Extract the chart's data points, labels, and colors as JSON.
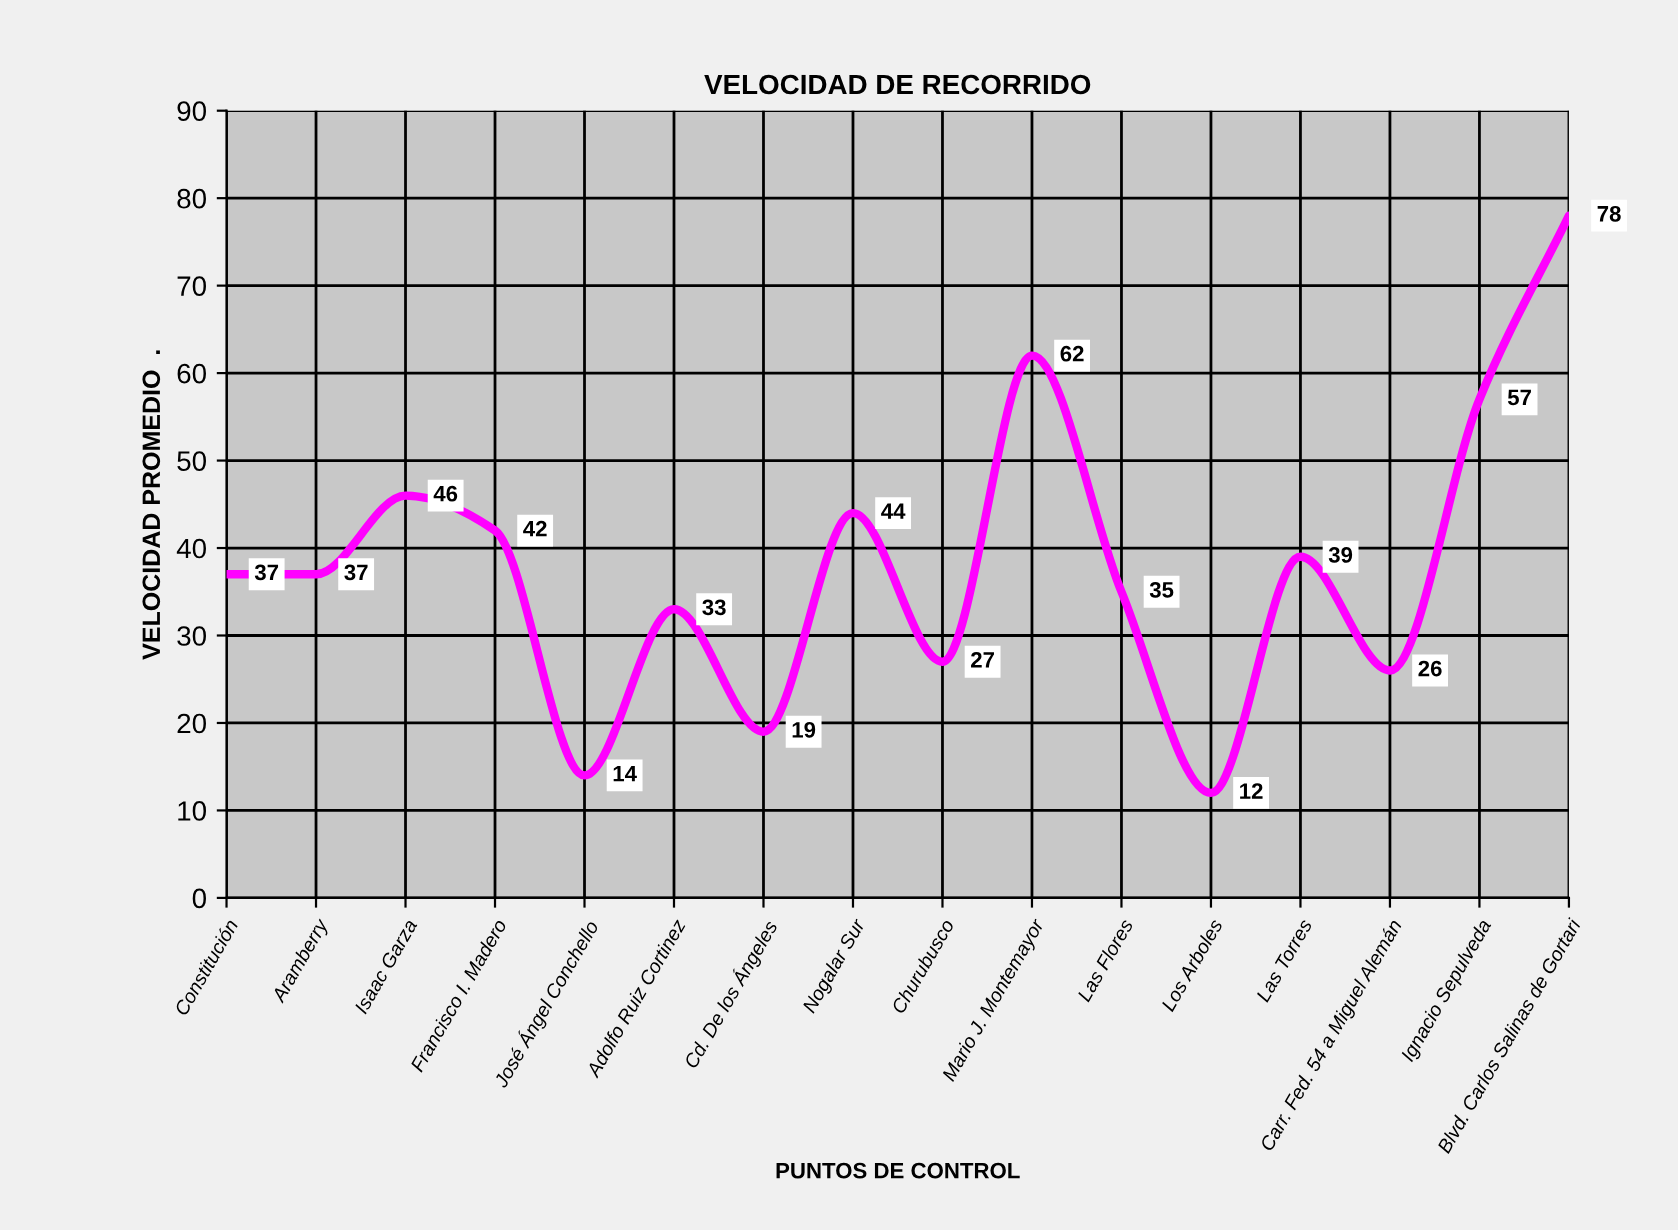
{
  "chart_data": {
    "type": "line",
    "title": "VELOCIDAD DE RECORRIDO",
    "xlabel": "PUNTOS DE CONTROL",
    "ylabel": "VELOCIDAD PROMEDIO  .",
    "categories": [
      "Constitución",
      "Aramberry",
      "Isaac Garza",
      "Francisco I. Madero",
      "José Ángel Conchello",
      "Adolfo Ruiz Cortinez",
      "Cd. De los Ángeles",
      "Nogalar Sur",
      "Churubusco",
      "Mario J. Montemayor",
      "Las Flores",
      "Los Arboles",
      "Las Torres",
      "Carr. Fed. 54 a Miguel Alemán",
      "Ignacio Sepulveda",
      "Blvd. Carlos Salinas de Gortari"
    ],
    "series": [
      {
        "color": "#ff00ff",
        "values": [
          37,
          37,
          46,
          42,
          14,
          33,
          19,
          44,
          27,
          62,
          35,
          12,
          39,
          26,
          57,
          78
        ]
      }
    ],
    "ylim": [
      0,
      90
    ],
    "yticks": [
      0,
      10,
      20,
      30,
      40,
      50,
      60,
      70,
      80,
      90
    ],
    "grid": true,
    "legend": false,
    "marker": "none",
    "line_style": "solid",
    "data_labels": true
  }
}
